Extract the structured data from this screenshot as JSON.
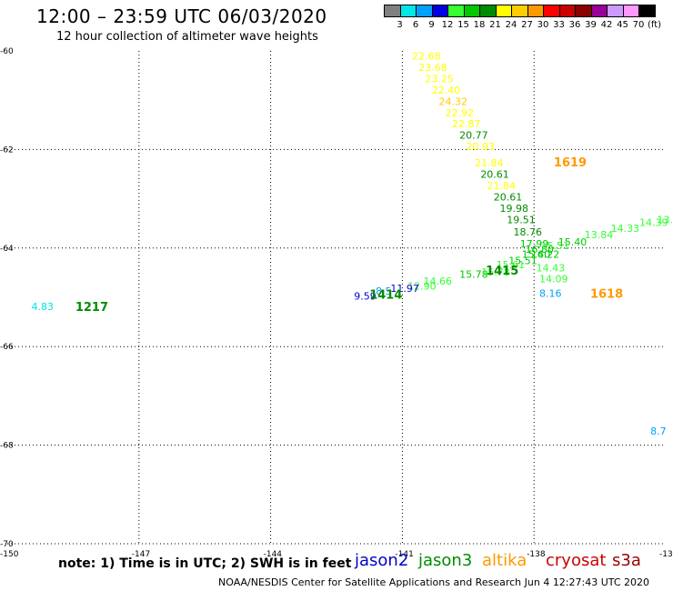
{
  "header": {
    "title": "12:00 – 23:59 UTC 06/03/2020",
    "subtitle": "12 hour collection of altimeter wave heights"
  },
  "legend": {
    "unit": "(ft)",
    "items": [
      {
        "label": "3",
        "color": "#808080"
      },
      {
        "label": "6",
        "color": "#00e5e5"
      },
      {
        "label": "9",
        "color": "#00a0ff"
      },
      {
        "label": "12",
        "color": "#0000e0"
      },
      {
        "label": "15",
        "color": "#33ff33"
      },
      {
        "label": "18",
        "color": "#00c800"
      },
      {
        "label": "21",
        "color": "#008c00"
      },
      {
        "label": "24",
        "color": "#ffff00"
      },
      {
        "label": "27",
        "color": "#ffcc00"
      },
      {
        "label": "30",
        "color": "#ff9900"
      },
      {
        "label": "33",
        "color": "#ff0000"
      },
      {
        "label": "36",
        "color": "#cc0000"
      },
      {
        "label": "39",
        "color": "#8b0000"
      },
      {
        "label": "42",
        "color": "#990099"
      },
      {
        "label": "45",
        "color": "#cc99ff"
      },
      {
        "label": "70",
        "color": "#ff99ff"
      },
      {
        "label": "",
        "color": "#000000"
      }
    ]
  },
  "map": {
    "lon_range": [
      -150,
      -135
    ],
    "lat_range": [
      -70,
      -60
    ],
    "lon_ticks": [
      {
        "value": -150,
        "label": "-150"
      },
      {
        "value": -147,
        "label": "-147"
      },
      {
        "value": -144,
        "label": "-144"
      },
      {
        "value": -141,
        "label": "-141"
      },
      {
        "value": -138,
        "label": "-138"
      },
      {
        "value": -135,
        "label": "-13"
      }
    ],
    "lat_ticks": [
      {
        "value": -60,
        "label": "-60"
      },
      {
        "value": -62,
        "label": "-62"
      },
      {
        "value": -64,
        "label": "-64"
      },
      {
        "value": -66,
        "label": "-66"
      },
      {
        "value": -68,
        "label": "-68"
      },
      {
        "value": -70,
        "label": "-70"
      }
    ],
    "observations": [
      {
        "lon": -140.78,
        "lat": -60.1,
        "value": "22.68",
        "color": "#ffff00"
      },
      {
        "lon": -140.63,
        "lat": -60.33,
        "value": "23.68",
        "color": "#ffff00"
      },
      {
        "lon": -140.48,
        "lat": -60.56,
        "value": "23.25",
        "color": "#ffff00"
      },
      {
        "lon": -140.33,
        "lat": -60.79,
        "value": "22.40",
        "color": "#ffff00"
      },
      {
        "lon": -140.17,
        "lat": -61.02,
        "value": "24.32",
        "color": "#ffcc00"
      },
      {
        "lon": -140.02,
        "lat": -61.25,
        "value": "22.92",
        "color": "#ffff00"
      },
      {
        "lon": -139.87,
        "lat": -61.48,
        "value": "22.87",
        "color": "#ffff00"
      },
      {
        "lon": -139.7,
        "lat": -61.71,
        "value": "20.77",
        "color": "#008c00"
      },
      {
        "lon": -139.55,
        "lat": -61.94,
        "value": "20.93",
        "color": "#ffff00"
      },
      {
        "lon": -139.35,
        "lat": -62.27,
        "value": "21.84",
        "color": "#ffff00"
      },
      {
        "lon": -139.22,
        "lat": -62.5,
        "value": "20.61",
        "color": "#008c00"
      },
      {
        "lon": -139.07,
        "lat": -62.73,
        "value": "21.84",
        "color": "#ffff00"
      },
      {
        "lon": -138.92,
        "lat": -62.96,
        "value": "20.61",
        "color": "#008c00"
      },
      {
        "lon": -138.78,
        "lat": -63.19,
        "value": "19.98",
        "color": "#008c00"
      },
      {
        "lon": -138.62,
        "lat": -63.42,
        "value": "19.51",
        "color": "#008c00"
      },
      {
        "lon": -138.47,
        "lat": -63.67,
        "value": "18.76",
        "color": "#008c00"
      },
      {
        "lon": -138.32,
        "lat": -63.91,
        "value": "17.99",
        "color": "#00c800"
      },
      {
        "lon": -138.2,
        "lat": -64.02,
        "value": "16.80",
        "color": "#00c800"
      },
      {
        "lon": -138.07,
        "lat": -64.12,
        "value": "16.22",
        "color": "#00c800"
      },
      {
        "lon": -137.95,
        "lat": -64.4,
        "value": "14.43",
        "color": "#33ff33"
      },
      {
        "lon": -137.88,
        "lat": -64.62,
        "value": "14.09",
        "color": "#33ff33"
      },
      {
        "lon": -137.88,
        "lat": -64.92,
        "value": "8.16",
        "color": "#00a0ff"
      },
      {
        "lon": -140.88,
        "lat": -64.77,
        "value": "12.90",
        "color": "#33ff33"
      },
      {
        "lon": -140.52,
        "lat": -64.67,
        "value": "14.66",
        "color": "#33ff33"
      },
      {
        "lon": -139.7,
        "lat": -64.53,
        "value": "15.78",
        "color": "#00c800"
      },
      {
        "lon": -139.2,
        "lat": -64.48,
        "value": "15.78",
        "color": "#33ff33"
      },
      {
        "lon": -138.86,
        "lat": -64.34,
        "value": "15.61",
        "color": "#33ff33"
      },
      {
        "lon": -138.58,
        "lat": -64.25,
        "value": "15.51",
        "color": "#00c800"
      },
      {
        "lon": -138.28,
        "lat": -64.12,
        "value": "15.40",
        "color": "#00c800"
      },
      {
        "lon": -137.85,
        "lat": -63.95,
        "value": "15.51",
        "color": "#33ff33"
      },
      {
        "lon": -137.45,
        "lat": -63.87,
        "value": "15.40",
        "color": "#00c800"
      },
      {
        "lon": -136.85,
        "lat": -63.73,
        "value": "13.84",
        "color": "#33ff33"
      },
      {
        "lon": -136.25,
        "lat": -63.6,
        "value": "14.33",
        "color": "#33ff33"
      },
      {
        "lon": -135.6,
        "lat": -63.48,
        "value": "14.39",
        "color": "#33ff33"
      },
      {
        "lon": -135.2,
        "lat": -63.42,
        "value": "13.",
        "color": "#33ff33"
      },
      {
        "lon": -141.27,
        "lat": -64.82,
        "value": "11.97",
        "color": "#0000e0"
      },
      {
        "lon": -141.61,
        "lat": -64.87,
        "value": "8.5",
        "color": "#00a0ff"
      },
      {
        "lon": -142.1,
        "lat": -64.97,
        "value": "9.59",
        "color": "#0000e0"
      },
      {
        "lon": -149.45,
        "lat": -65.18,
        "value": "4.83",
        "color": "#00e5e5"
      },
      {
        "lon": -135.35,
        "lat": -67.71,
        "value": "8.7",
        "color": "#00a0ff"
      }
    ],
    "passes": [
      {
        "lon": -137.55,
        "lat": -62.25,
        "label": "1619",
        "color": "#ff9900"
      },
      {
        "lon": -139.1,
        "lat": -64.45,
        "label": "1415",
        "color": "#008c00"
      },
      {
        "lon": -141.75,
        "lat": -64.94,
        "label": "1414",
        "color": "#008c00"
      },
      {
        "lon": -148.45,
        "lat": -65.18,
        "label": "1217",
        "color": "#008c00"
      },
      {
        "lon": -136.72,
        "lat": -64.92,
        "label": "1618",
        "color": "#ff9900"
      }
    ]
  },
  "footer": {
    "note": "note: 1) Time is in UTC; 2) SWH is in feet",
    "satellites": [
      {
        "name": "jason2",
        "color": "#0000cc"
      },
      {
        "name": "jason3",
        "color": "#008c00"
      },
      {
        "name": "altika",
        "color": "#ff9900"
      },
      {
        "name": "cryosat",
        "color": "#cc0000"
      },
      {
        "name": "s3a",
        "color": "#990000"
      }
    ],
    "credit": "NOAA/NESDIS Center for Satellite Applications and Research   Jun  4 12:27:43 UTC 2020"
  }
}
